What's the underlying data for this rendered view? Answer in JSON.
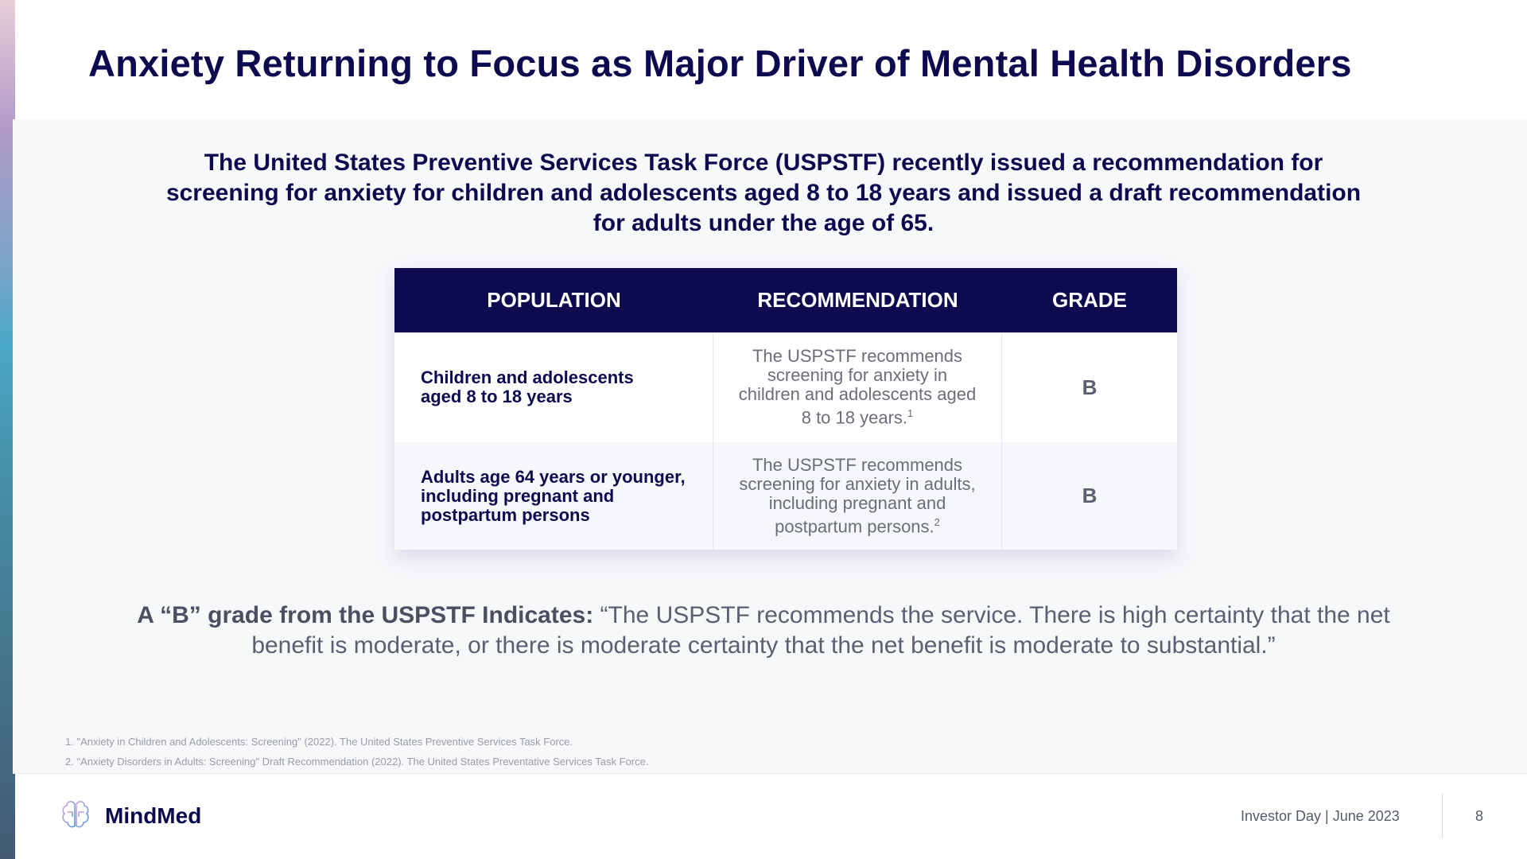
{
  "title": "Anxiety Returning to Focus as Major Driver of Mental Health Disorders",
  "subtitle": "The United States Preventive Services Task Force (USPSTF) recently issued a recommendation for screening for anxiety for children and adolescents aged 8 to 18 years and issued a draft recommendation for adults under the age of 65.",
  "table": {
    "headers": [
      "POPULATION",
      "RECOMMENDATION",
      "GRADE"
    ],
    "rows": [
      {
        "population": "Children and adolescents aged 8 to 18 years",
        "recommendation": "The USPSTF recommends screening for anxiety in children and adolescents aged 8 to 18 years.",
        "footnote": "1",
        "grade": "B"
      },
      {
        "population": "Adults age 64 years or younger, including pregnant and postpartum persons",
        "recommendation": "The USPSTF recommends screening for anxiety in adults, including pregnant and postpartum persons.",
        "footnote": "2",
        "grade": "B"
      }
    ]
  },
  "quote": {
    "lead": "A “B” grade from the USPSTF Indicates:",
    "text": " “The USPSTF recommends the service. There is high certainty that the net benefit is moderate, or there is moderate certainty that the net benefit is moderate to substantial.”"
  },
  "footnotes": [
    "1.  \"Anxiety in Children and Adolescents: Screening\" (2022). The United States Preventive Services Task Force.",
    "2.  \"Anxiety Disorders in Adults: Screening\" Draft Recommendation (2022). The United States Preventative Services Task Force."
  ],
  "footer": {
    "brand": "MindMed",
    "logo_icon": "brain-icon",
    "event": "Investor Day | June 2023",
    "page_number": "8"
  },
  "colors": {
    "navy": "#0d0a50",
    "gray_text": "#5a6070",
    "panel": "#f7f8fa"
  }
}
